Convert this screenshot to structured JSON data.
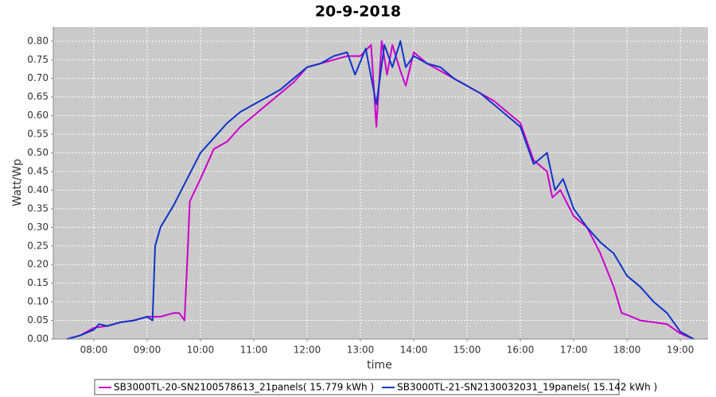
{
  "chart_data": {
    "type": "line",
    "title": "20-9-2018",
    "x_label": "time",
    "y_label": "Watt/Wp",
    "xlim": [
      7.24,
      19.52
    ],
    "ylim": [
      0,
      0.838
    ],
    "grid": true,
    "xticks": [
      {
        "value": 8,
        "label": "08:00"
      },
      {
        "value": 9,
        "label": "09:00"
      },
      {
        "value": 10,
        "label": "10:00"
      },
      {
        "value": 11,
        "label": "11:00"
      },
      {
        "value": 12,
        "label": "12:00"
      },
      {
        "value": 13,
        "label": "13:00"
      },
      {
        "value": 14,
        "label": "14:00"
      },
      {
        "value": 15,
        "label": "15:00"
      },
      {
        "value": 16,
        "label": "16:00"
      },
      {
        "value": 17,
        "label": "17:00"
      },
      {
        "value": 18,
        "label": "18:00"
      },
      {
        "value": 19,
        "label": "19:00"
      }
    ],
    "yticks": [
      {
        "value": 0,
        "label": "0.00"
      },
      {
        "value": 0.05,
        "label": "0.05"
      },
      {
        "value": 0.1,
        "label": "0.10"
      },
      {
        "value": 0.15,
        "label": "0.15"
      },
      {
        "value": 0.2,
        "label": "0.20"
      },
      {
        "value": 0.25,
        "label": "0.25"
      },
      {
        "value": 0.3,
        "label": "0.30"
      },
      {
        "value": 0.35,
        "label": "0.35"
      },
      {
        "value": 0.4,
        "label": "0.40"
      },
      {
        "value": 0.45,
        "label": "0.45"
      },
      {
        "value": 0.5,
        "label": "0.50"
      },
      {
        "value": 0.55,
        "label": "0.55"
      },
      {
        "value": 0.6,
        "label": "0.60"
      },
      {
        "value": 0.65,
        "label": "0.65"
      },
      {
        "value": 0.7,
        "label": "0.70"
      },
      {
        "value": 0.75,
        "label": "0.75"
      },
      {
        "value": 0.8,
        "label": "0.80"
      }
    ],
    "series": [
      {
        "name": "SB3000TL-20-SN2100578613_21panels( 15.779 kWh )",
        "color": "#cc00cc",
        "x": [
          7.5,
          7.75,
          8.0,
          8.25,
          8.5,
          8.75,
          9.0,
          9.25,
          9.5,
          9.6,
          9.7,
          9.75,
          9.8,
          10.0,
          10.25,
          10.5,
          10.75,
          11.0,
          11.25,
          11.5,
          11.75,
          12.0,
          12.25,
          12.5,
          12.75,
          13.0,
          13.2,
          13.3,
          13.4,
          13.5,
          13.6,
          13.75,
          13.85,
          14.0,
          14.25,
          14.5,
          14.75,
          15.0,
          15.25,
          15.5,
          15.75,
          16.0,
          16.25,
          16.5,
          16.6,
          16.75,
          17.0,
          17.25,
          17.5,
          17.75,
          17.9,
          18.0,
          18.25,
          18.5,
          18.75,
          19.0,
          19.25
        ],
        "values": [
          0.0,
          0.01,
          0.03,
          0.035,
          0.045,
          0.05,
          0.06,
          0.06,
          0.07,
          0.07,
          0.05,
          0.2,
          0.37,
          0.43,
          0.51,
          0.53,
          0.57,
          0.6,
          0.63,
          0.66,
          0.69,
          0.73,
          0.74,
          0.75,
          0.76,
          0.76,
          0.79,
          0.57,
          0.8,
          0.71,
          0.79,
          0.72,
          0.68,
          0.77,
          0.74,
          0.72,
          0.7,
          0.68,
          0.66,
          0.64,
          0.61,
          0.58,
          0.48,
          0.45,
          0.38,
          0.4,
          0.33,
          0.3,
          0.23,
          0.14,
          0.07,
          0.065,
          0.05,
          0.045,
          0.04,
          0.015,
          0.0
        ]
      },
      {
        "name": "SB3000TL-21-SN2130032031_19panels( 15.142 kWh )",
        "color": "#1034c8",
        "x": [
          7.5,
          7.75,
          8.0,
          8.1,
          8.25,
          8.5,
          8.75,
          9.0,
          9.1,
          9.15,
          9.25,
          9.5,
          9.75,
          10.0,
          10.25,
          10.5,
          10.75,
          11.0,
          11.25,
          11.5,
          11.75,
          12.0,
          12.25,
          12.5,
          12.75,
          12.9,
          13.1,
          13.3,
          13.45,
          13.6,
          13.75,
          13.85,
          14.0,
          14.25,
          14.5,
          14.75,
          15.0,
          15.25,
          15.5,
          15.75,
          16.0,
          16.25,
          16.5,
          16.65,
          16.8,
          17.0,
          17.25,
          17.5,
          17.75,
          18.0,
          18.25,
          18.5,
          18.75,
          19.0,
          19.25
        ],
        "values": [
          0.0,
          0.01,
          0.025,
          0.04,
          0.035,
          0.045,
          0.05,
          0.06,
          0.05,
          0.25,
          0.3,
          0.36,
          0.43,
          0.5,
          0.54,
          0.58,
          0.61,
          0.63,
          0.65,
          0.67,
          0.7,
          0.73,
          0.74,
          0.76,
          0.77,
          0.71,
          0.78,
          0.63,
          0.79,
          0.73,
          0.8,
          0.73,
          0.76,
          0.74,
          0.73,
          0.7,
          0.68,
          0.66,
          0.63,
          0.6,
          0.57,
          0.47,
          0.5,
          0.4,
          0.43,
          0.35,
          0.3,
          0.26,
          0.23,
          0.17,
          0.14,
          0.1,
          0.07,
          0.02,
          0.0
        ]
      }
    ]
  }
}
